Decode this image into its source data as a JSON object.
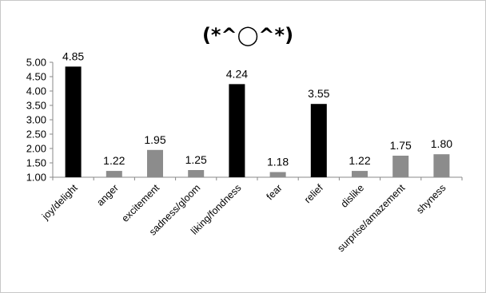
{
  "chart_data": {
    "type": "bar",
    "title": "(*^◯^*)",
    "xlabel": "",
    "ylabel": "",
    "ylim": [
      1.0,
      5.0
    ],
    "yticks": [
      "1.00",
      "1.50",
      "2.00",
      "2.50",
      "3.00",
      "3.50",
      "4.00",
      "4.50",
      "5.00"
    ],
    "grid": false,
    "categories": [
      "joy/delight",
      "anger",
      "excitement",
      "sadness/gloom",
      "liking/fondness",
      "fear",
      "relief",
      "dislike",
      "surprise/amazement",
      "shyness"
    ],
    "values": [
      4.85,
      1.22,
      1.95,
      1.25,
      4.24,
      1.18,
      3.55,
      1.22,
      1.75,
      1.8
    ],
    "data_labels": [
      "4.85",
      "1.22",
      "1.95",
      "1.25",
      "4.24",
      "1.18",
      "3.55",
      "1.22",
      "1.75",
      "1.80"
    ],
    "bar_colors": [
      "#000000",
      "#8c8c8c",
      "#8c8c8c",
      "#8c8c8c",
      "#000000",
      "#8c8c8c",
      "#000000",
      "#8c8c8c",
      "#8c8c8c",
      "#8c8c8c"
    ]
  }
}
